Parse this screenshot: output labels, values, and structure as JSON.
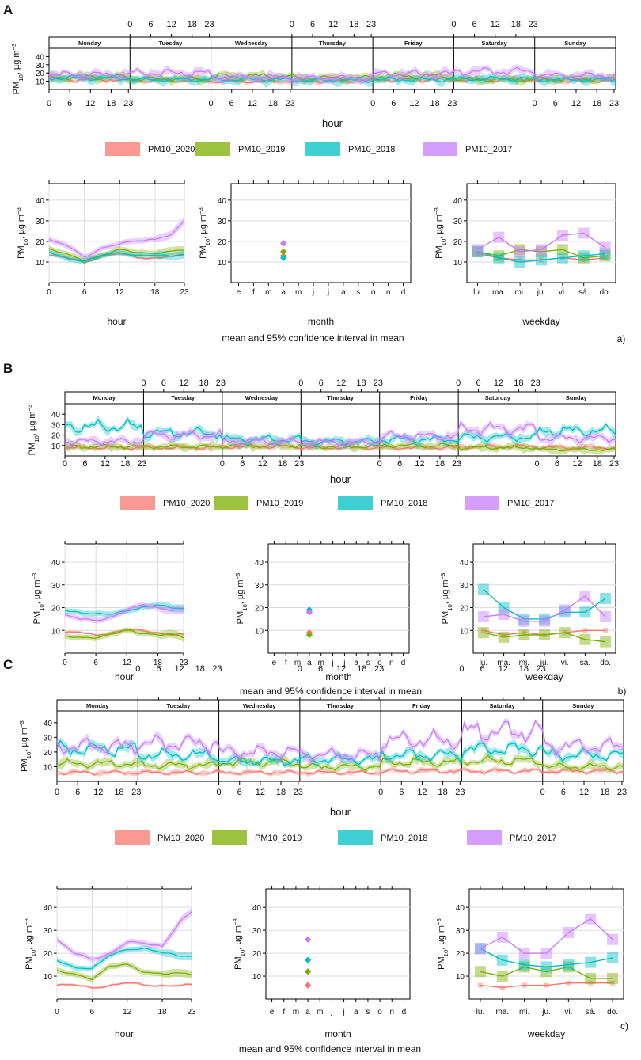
{
  "figure": {
    "days": [
      "Monday",
      "Tuesday",
      "Wednesday",
      "Thursday",
      "Friday",
      "Saturday",
      "Sunday"
    ],
    "hour_ticks": [
      "0",
      "6",
      "12",
      "18",
      "23"
    ],
    "months": [
      "e",
      "f",
      "m",
      "a",
      "m",
      "j",
      "j",
      "a",
      "s",
      "o",
      "n",
      "d"
    ],
    "weekdays": [
      "lu.",
      "ma.",
      "mi.",
      "ju.",
      "vi.",
      "sá.",
      "do."
    ],
    "axis_labels": {
      "hour": "hour",
      "month": "month",
      "weekday": "weekday"
    },
    "ylabel_main": "PM",
    "ylabel_sub": "10",
    "ylabel_unit": ", µg m",
    "ylabel_exp": "−3",
    "caption": "mean and 95% confidence interval in mean",
    "legend": [
      "PM10_2020",
      "PM10_2019",
      "PM10_2018",
      "PM10_2017"
    ],
    "colors": {
      "PM10_2020": "#f8766d",
      "PM10_2019": "#7cae00",
      "PM10_2018": "#00bfc4",
      "PM10_2017": "#c77cff"
    }
  },
  "chart_data": [
    {
      "panel_id": "A",
      "corner_label": "a)",
      "type": "line",
      "ylim": [
        0,
        50
      ],
      "y_ticks": [
        10,
        20,
        30,
        40
      ],
      "weekly_y_ticks": [
        10,
        20,
        30,
        40
      ],
      "series": [
        {
          "name": "PM10_2020",
          "daily_levels": [
            12,
            11,
            10,
            10,
            12,
            12,
            11
          ]
        },
        {
          "name": "PM10_2019",
          "daily_levels": [
            15,
            13,
            16,
            14,
            16,
            12,
            13
          ]
        },
        {
          "name": "PM10_2018",
          "daily_levels": [
            14,
            12,
            12,
            11,
            12,
            13,
            12
          ]
        },
        {
          "name": "PM10_2017",
          "daily_levels": [
            18,
            20,
            15,
            14,
            19,
            22,
            17
          ]
        }
      ],
      "hour_profile": [
        {
          "name": "PM10_2020",
          "hours": [
            0,
            3,
            6,
            9,
            12,
            15,
            18,
            21,
            23
          ],
          "values": [
            13,
            12,
            10,
            13,
            14,
            12,
            12,
            13,
            13
          ]
        },
        {
          "name": "PM10_2019",
          "hours": [
            0,
            3,
            6,
            9,
            12,
            15,
            18,
            21,
            23
          ],
          "values": [
            16,
            14,
            11,
            13,
            16,
            15,
            14,
            15,
            16
          ]
        },
        {
          "name": "PM10_2018",
          "hours": [
            0,
            3,
            6,
            9,
            12,
            15,
            18,
            21,
            23
          ],
          "values": [
            15,
            12,
            10,
            13,
            15,
            13,
            13,
            13,
            14
          ]
        },
        {
          "name": "PM10_2017",
          "hours": [
            0,
            3,
            6,
            9,
            12,
            15,
            18,
            21,
            23
          ],
          "values": [
            21,
            18,
            12,
            17,
            19,
            20,
            21,
            24,
            30
          ]
        }
      ],
      "month_profile": {
        "month": "a",
        "values": {
          "PM10_2020": 13,
          "PM10_2019": 15,
          "PM10_2018": 12,
          "PM10_2017": 19
        }
      },
      "weekday_profile": [
        {
          "name": "PM10_2020",
          "values": [
            14,
            12,
            11,
            11,
            12,
            11,
            12
          ]
        },
        {
          "name": "PM10_2019",
          "values": [
            15,
            13,
            16,
            15,
            16,
            12,
            13
          ]
        },
        {
          "name": "PM10_2018",
          "values": [
            15,
            12,
            10,
            11,
            12,
            13,
            14
          ]
        },
        {
          "name": "PM10_2017",
          "values": [
            16,
            22,
            15,
            16,
            23,
            24,
            17
          ]
        }
      ]
    },
    {
      "panel_id": "B",
      "corner_label": "b)",
      "type": "line",
      "ylim": [
        0,
        50
      ],
      "y_ticks": [
        10,
        20,
        30,
        40
      ],
      "weekly_y_ticks": [
        10,
        20,
        30,
        40
      ],
      "series": [
        {
          "name": "PM10_2020",
          "daily_levels": [
            8,
            8,
            9,
            8,
            8,
            9,
            8
          ]
        },
        {
          "name": "PM10_2019",
          "daily_levels": [
            9,
            9,
            10,
            9,
            10,
            8,
            6
          ]
        },
        {
          "name": "PM10_2018",
          "daily_levels": [
            28,
            22,
            16,
            14,
            16,
            18,
            24
          ]
        },
        {
          "name": "PM10_2017",
          "daily_levels": [
            14,
            20,
            14,
            13,
            19,
            26,
            17
          ]
        }
      ],
      "hour_profile": [
        {
          "name": "PM10_2020",
          "hours": [
            0,
            3,
            6,
            9,
            12,
            15,
            18,
            21,
            23
          ],
          "values": [
            9,
            9,
            8,
            9,
            10,
            10,
            9,
            8,
            8
          ]
        },
        {
          "name": "PM10_2019",
          "hours": [
            0,
            3,
            6,
            9,
            12,
            15,
            18,
            21,
            23
          ],
          "values": [
            7,
            7,
            7,
            8,
            10,
            9,
            8,
            8,
            7
          ]
        },
        {
          "name": "PM10_2018",
          "hours": [
            0,
            3,
            6,
            9,
            12,
            15,
            18,
            21,
            23
          ],
          "values": [
            19,
            18,
            17,
            17,
            19,
            20,
            21,
            20,
            20
          ]
        },
        {
          "name": "PM10_2017",
          "hours": [
            0,
            3,
            6,
            9,
            12,
            15,
            18,
            21,
            23
          ],
          "values": [
            17,
            15,
            14,
            16,
            19,
            21,
            20,
            19,
            19
          ]
        }
      ],
      "month_profile": {
        "month": "a",
        "values": {
          "PM10_2020": 9,
          "PM10_2019": 8,
          "PM10_2018": 19,
          "PM10_2017": 18
        }
      },
      "weekday_profile": [
        {
          "name": "PM10_2020",
          "values": [
            10,
            8,
            9,
            8,
            9,
            10,
            10
          ]
        },
        {
          "name": "PM10_2019",
          "values": [
            9,
            7,
            8,
            8,
            9,
            6,
            5
          ]
        },
        {
          "name": "PM10_2018",
          "values": [
            28,
            20,
            15,
            15,
            18,
            18,
            24
          ]
        },
        {
          "name": "PM10_2017",
          "values": [
            16,
            17,
            14,
            14,
            19,
            25,
            16
          ]
        }
      ]
    },
    {
      "panel_id": "C",
      "corner_label": "c)",
      "type": "line",
      "ylim": [
        0,
        48
      ],
      "y_ticks": [
        10,
        20,
        30,
        40
      ],
      "weekly_y_ticks": [
        10,
        20,
        30,
        40
      ],
      "series": [
        {
          "name": "PM10_2020",
          "daily_levels": [
            6,
            6,
            6,
            6,
            7,
            7,
            7
          ]
        },
        {
          "name": "PM10_2019",
          "daily_levels": [
            12,
            11,
            13,
            10,
            13,
            14,
            10
          ]
        },
        {
          "name": "PM10_2018",
          "daily_levels": [
            22,
            18,
            14,
            15,
            18,
            22,
            18
          ]
        },
        {
          "name": "PM10_2017",
          "daily_levels": [
            24,
            26,
            20,
            18,
            28,
            34,
            24
          ]
        }
      ],
      "hour_profile": [
        {
          "name": "PM10_2020",
          "hours": [
            0,
            3,
            6,
            9,
            12,
            15,
            18,
            21,
            23
          ],
          "values": [
            6,
            6,
            5,
            6,
            7,
            6,
            6,
            6,
            6
          ]
        },
        {
          "name": "PM10_2019",
          "hours": [
            0,
            3,
            6,
            9,
            12,
            15,
            18,
            21,
            23
          ],
          "values": [
            12,
            11,
            9,
            14,
            15,
            12,
            11,
            11,
            11
          ]
        },
        {
          "name": "PM10_2018",
          "hours": [
            0,
            3,
            6,
            9,
            12,
            15,
            18,
            21,
            23
          ],
          "values": [
            17,
            14,
            13,
            19,
            22,
            22,
            20,
            19,
            19
          ]
        },
        {
          "name": "PM10_2017",
          "hours": [
            0,
            3,
            6,
            9,
            12,
            15,
            18,
            21,
            23
          ],
          "values": [
            26,
            20,
            17,
            20,
            25,
            24,
            23,
            34,
            38
          ]
        }
      ],
      "month_profile": {
        "month": "a",
        "values": {
          "PM10_2020": 6,
          "PM10_2019": 12,
          "PM10_2018": 17,
          "PM10_2017": 26
        }
      },
      "weekday_profile": [
        {
          "name": "PM10_2020",
          "values": [
            6,
            5,
            6,
            6,
            7,
            7,
            7
          ]
        },
        {
          "name": "PM10_2019",
          "values": [
            12,
            10,
            14,
            12,
            14,
            9,
            9
          ]
        },
        {
          "name": "PM10_2018",
          "values": [
            22,
            17,
            15,
            14,
            15,
            16,
            18
          ]
        },
        {
          "name": "PM10_2017",
          "values": [
            22,
            27,
            20,
            20,
            29,
            35,
            26
          ]
        }
      ]
    }
  ]
}
